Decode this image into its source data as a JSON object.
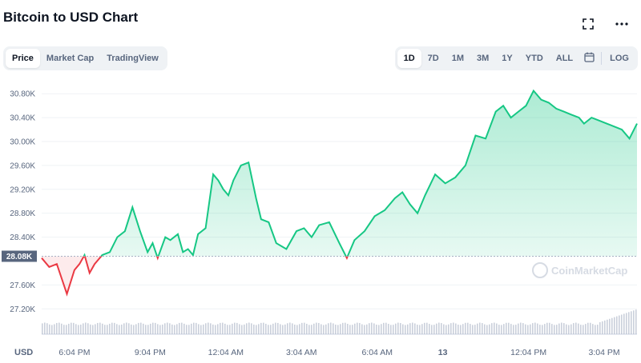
{
  "header": {
    "title": "Bitcoin to USD Chart"
  },
  "icons": {
    "fullscreen": "fullscreen-icon",
    "more": "more-icon",
    "calendar": "calendar-icon"
  },
  "view_tabs": [
    "Price",
    "Market Cap",
    "TradingView"
  ],
  "active_view": "Price",
  "range_tabs": [
    "1D",
    "7D",
    "1M",
    "3M",
    "1Y",
    "YTD",
    "ALL"
  ],
  "active_range": "1D",
  "log_label": "LOG",
  "watermark": "CoinMarketCap",
  "colors": {
    "up": "#16c784",
    "down": "#ea3943",
    "grid": "#eff2f5",
    "baseline_tag": "#58667e"
  },
  "chart_data": {
    "type": "area",
    "currency_label": "USD",
    "y_ticks": [
      "30.80K",
      "30.40K",
      "30.00K",
      "29.60K",
      "29.20K",
      "28.80K",
      "28.40K",
      "27.60K",
      "27.20K"
    ],
    "y_tick_values": [
      30800,
      30400,
      30000,
      29600,
      29200,
      28800,
      28400,
      27600,
      27200
    ],
    "x_ticks": [
      "6:04 PM",
      "9:04 PM",
      "12:04 AM",
      "3:04 AM",
      "6:04 AM",
      "13",
      "12:04 PM",
      "3:04 PM"
    ],
    "baseline": 28080,
    "baseline_label": "28.08K",
    "ylim": [
      27150,
      30950
    ],
    "x_range_hours": [
      0,
      23.6
    ],
    "grid": true,
    "x": [
      0,
      0.3,
      0.6,
      0.8,
      1.0,
      1.3,
      1.5,
      1.7,
      1.9,
      2.1,
      2.4,
      2.7,
      3.0,
      3.3,
      3.6,
      3.9,
      4.2,
      4.4,
      4.6,
      4.9,
      5.1,
      5.4,
      5.6,
      5.8,
      6.0,
      6.2,
      6.5,
      6.8,
      7.0,
      7.2,
      7.4,
      7.6,
      7.9,
      8.2,
      8.5,
      8.7,
      9.0,
      9.3,
      9.7,
      10.1,
      10.4,
      10.7,
      11.0,
      11.4,
      11.8,
      12.1,
      12.4,
      12.8,
      13.2,
      13.6,
      14.0,
      14.3,
      14.6,
      14.9,
      15.2,
      15.6,
      16.0,
      16.4,
      16.8,
      17.2,
      17.6,
      18.0,
      18.3,
      18.6,
      18.9,
      19.2,
      19.5,
      19.8,
      20.1,
      20.4,
      20.7,
      21.0,
      21.3,
      21.5,
      21.8,
      22.1,
      22.4,
      22.7,
      23.0,
      23.3,
      23.6
    ],
    "y": [
      28050,
      27900,
      27950,
      27700,
      27450,
      27850,
      27950,
      28100,
      27800,
      27950,
      28100,
      28150,
      28400,
      28500,
      28900,
      28500,
      28150,
      28300,
      28050,
      28400,
      28350,
      28450,
      28150,
      28200,
      28100,
      28450,
      28550,
      29450,
      29350,
      29200,
      29100,
      29350,
      29600,
      29650,
      29050,
      28700,
      28650,
      28300,
      28200,
      28500,
      28550,
      28400,
      28600,
      28650,
      28300,
      28050,
      28350,
      28500,
      28750,
      28850,
      29050,
      29150,
      28950,
      28800,
      29100,
      29450,
      29300,
      29400,
      29600,
      30100,
      30050,
      30500,
      30600,
      30400,
      30500,
      30600,
      30850,
      30700,
      30650,
      30550,
      30500,
      30450,
      30400,
      30300,
      30400,
      30350,
      30300,
      30250,
      30200,
      30050,
      30300
    ]
  }
}
